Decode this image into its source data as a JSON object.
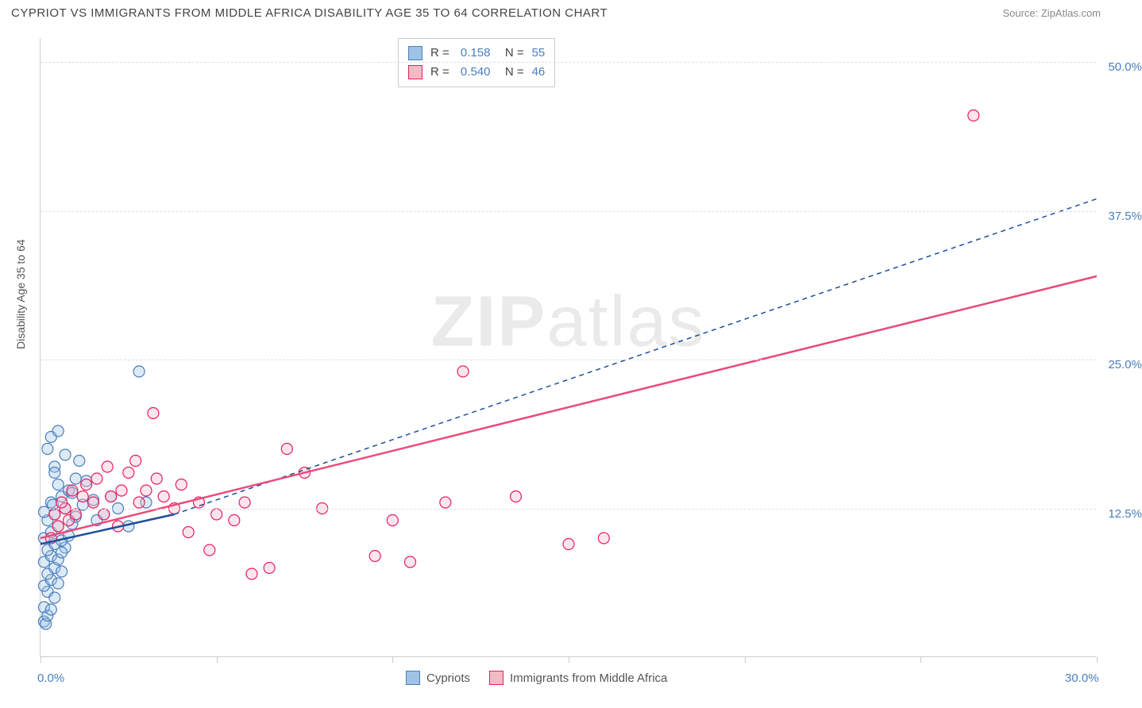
{
  "header": {
    "title": "CYPRIOT VS IMMIGRANTS FROM MIDDLE AFRICA DISABILITY AGE 35 TO 64 CORRELATION CHART",
    "source": "Source: ZipAtlas.com"
  },
  "chart": {
    "type": "scatter",
    "ylabel": "Disability Age 35 to 64",
    "xlim": [
      0,
      30
    ],
    "ylim": [
      0,
      52
    ],
    "x_ticks": [
      0,
      5,
      10,
      15,
      20,
      25,
      30
    ],
    "x_tick_labels_shown": {
      "0": "0.0%",
      "30": "30.0%"
    },
    "y_gridlines": [
      12.5,
      25.0,
      37.5,
      50.0
    ],
    "y_tick_labels": [
      "12.5%",
      "25.0%",
      "37.5%",
      "50.0%"
    ],
    "background_color": "#ffffff",
    "grid_color": "#dddddd",
    "axis_color": "#cccccc",
    "label_color": "#4a7ebb",
    "marker_radius": 7,
    "marker_stroke_width": 1.2,
    "marker_fill_opacity": 0.35,
    "series": [
      {
        "name": "Cypriots",
        "fill_color": "#9ec3e6",
        "stroke_color": "#4a7ebb",
        "line_color": "#1f4e9c",
        "line_dash": "none",
        "line_width": 2.5,
        "R": "0.158",
        "N": "55",
        "trend": {
          "x1": 0,
          "y1": 9.5,
          "x2": 3.8,
          "y2": 12.0
        },
        "trend_ext": {
          "x1": 3.8,
          "y1": 12.0,
          "x2": 30,
          "y2": 38.5,
          "dash": "6,5"
        },
        "points": [
          [
            0.1,
            3.0
          ],
          [
            0.15,
            2.8
          ],
          [
            0.2,
            3.5
          ],
          [
            0.1,
            4.2
          ],
          [
            0.3,
            4.0
          ],
          [
            0.2,
            5.5
          ],
          [
            0.4,
            5.0
          ],
          [
            0.1,
            6.0
          ],
          [
            0.3,
            6.5
          ],
          [
            0.5,
            6.2
          ],
          [
            0.2,
            7.0
          ],
          [
            0.4,
            7.5
          ],
          [
            0.6,
            7.2
          ],
          [
            0.1,
            8.0
          ],
          [
            0.3,
            8.5
          ],
          [
            0.5,
            8.2
          ],
          [
            0.2,
            9.0
          ],
          [
            0.7,
            9.2
          ],
          [
            0.4,
            9.5
          ],
          [
            0.1,
            10.0
          ],
          [
            0.6,
            9.8
          ],
          [
            0.3,
            10.5
          ],
          [
            0.8,
            10.2
          ],
          [
            0.5,
            11.0
          ],
          [
            0.2,
            11.5
          ],
          [
            0.9,
            11.2
          ],
          [
            0.4,
            12.0
          ],
          [
            0.7,
            12.5
          ],
          [
            0.1,
            12.2
          ],
          [
            1.0,
            11.8
          ],
          [
            0.3,
            13.0
          ],
          [
            0.6,
            13.5
          ],
          [
            1.2,
            12.8
          ],
          [
            0.8,
            14.0
          ],
          [
            0.5,
            14.5
          ],
          [
            1.5,
            13.2
          ],
          [
            1.0,
            15.0
          ],
          [
            0.4,
            16.0
          ],
          [
            1.3,
            14.8
          ],
          [
            0.7,
            17.0
          ],
          [
            2.0,
            13.5
          ],
          [
            1.8,
            12.0
          ],
          [
            0.3,
            18.5
          ],
          [
            0.5,
            19.0
          ],
          [
            2.2,
            12.5
          ],
          [
            0.2,
            17.5
          ],
          [
            1.1,
            16.5
          ],
          [
            2.5,
            11.0
          ],
          [
            3.0,
            13.0
          ],
          [
            0.4,
            15.5
          ],
          [
            0.9,
            13.8
          ],
          [
            1.6,
            11.5
          ],
          [
            2.8,
            24.0
          ],
          [
            0.6,
            8.8
          ],
          [
            0.35,
            12.8
          ]
        ]
      },
      {
        "name": "Immigrants from Middle Africa",
        "fill_color": "#f5b8c5",
        "stroke_color": "#e91e63",
        "line_color": "#e94b7a",
        "line_dash": "none",
        "line_width": 2.5,
        "R": "0.540",
        "N": "46",
        "trend": {
          "x1": 0,
          "y1": 10.0,
          "x2": 30,
          "y2": 32.0
        },
        "points": [
          [
            0.3,
            10.0
          ],
          [
            0.5,
            11.0
          ],
          [
            0.8,
            11.5
          ],
          [
            0.4,
            12.0
          ],
          [
            0.7,
            12.5
          ],
          [
            1.0,
            12.0
          ],
          [
            0.6,
            13.0
          ],
          [
            1.2,
            13.5
          ],
          [
            0.9,
            14.0
          ],
          [
            1.5,
            13.0
          ],
          [
            1.8,
            12.0
          ],
          [
            1.3,
            14.5
          ],
          [
            2.0,
            13.5
          ],
          [
            1.6,
            15.0
          ],
          [
            2.3,
            14.0
          ],
          [
            2.5,
            15.5
          ],
          [
            1.9,
            16.0
          ],
          [
            2.8,
            13.0
          ],
          [
            3.0,
            14.0
          ],
          [
            2.2,
            11.0
          ],
          [
            3.3,
            15.0
          ],
          [
            3.5,
            13.5
          ],
          [
            2.7,
            16.5
          ],
          [
            3.8,
            12.5
          ],
          [
            4.0,
            14.5
          ],
          [
            3.2,
            20.5
          ],
          [
            4.5,
            13.0
          ],
          [
            5.0,
            12.0
          ],
          [
            4.2,
            10.5
          ],
          [
            5.5,
            11.5
          ],
          [
            6.0,
            7.0
          ],
          [
            5.8,
            13.0
          ],
          [
            6.5,
            7.5
          ],
          [
            7.0,
            17.5
          ],
          [
            7.5,
            15.5
          ],
          [
            8.0,
            12.5
          ],
          [
            9.5,
            8.5
          ],
          [
            10.0,
            11.5
          ],
          [
            10.5,
            8.0
          ],
          [
            11.5,
            13.0
          ],
          [
            12.0,
            24.0
          ],
          [
            13.5,
            13.5
          ],
          [
            15.0,
            9.5
          ],
          [
            16.0,
            10.0
          ],
          [
            26.5,
            45.5
          ],
          [
            4.8,
            9.0
          ]
        ]
      }
    ],
    "legend_top": {
      "rows": [
        {
          "swatch_fill": "#9ec3e6",
          "swatch_stroke": "#4a7ebb",
          "r_label": "R =",
          "r_val": "0.158",
          "n_label": "N =",
          "n_val": "55"
        },
        {
          "swatch_fill": "#f5b8c5",
          "swatch_stroke": "#e91e63",
          "r_label": "R =",
          "r_val": "0.540",
          "n_label": "N =",
          "n_val": "46"
        }
      ]
    },
    "legend_bottom": [
      {
        "swatch_fill": "#9ec3e6",
        "swatch_stroke": "#4a7ebb",
        "label": "Cypriots"
      },
      {
        "swatch_fill": "#f5b8c5",
        "swatch_stroke": "#e91e63",
        "label": "Immigrants from Middle Africa"
      }
    ],
    "watermark": {
      "bold": "ZIP",
      "rest": "atlas"
    }
  }
}
